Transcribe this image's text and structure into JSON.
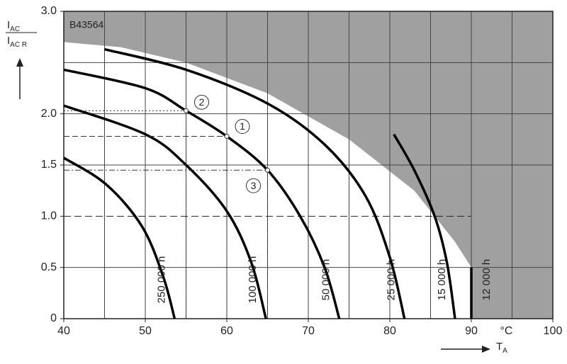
{
  "chart_data": {
    "type": "line",
    "id_label": "B43564",
    "ylabel_top": {
      "main": "I",
      "sub": "AC"
    },
    "ylabel_bottom": {
      "main": "I",
      "sub": "AC R"
    },
    "xlabel": {
      "main": "T",
      "sub": "A"
    },
    "xunit": "°C",
    "xlim": [
      40,
      100
    ],
    "ylim": [
      0,
      3
    ],
    "xticks": [
      40,
      50,
      60,
      70,
      80,
      90,
      100
    ],
    "yticks": [
      0,
      0.5,
      {
        "value": 1,
        "label": "1.0"
      },
      1.5,
      {
        "value": 2,
        "label": "2.0"
      },
      {
        "value": 3,
        "label": "3.0"
      }
    ],
    "xgrid": [
      45,
      50,
      55,
      60,
      65,
      70,
      75,
      80,
      85,
      90,
      95
    ],
    "ygrid": [
      0.5,
      1.5,
      2,
      2.5
    ],
    "color": "#000000",
    "limit_color": "#a0a0a0",
    "series": [
      {
        "name": "250 000 h",
        "x": [
          40,
          45.2,
          49.6,
          52.2,
          53.6
        ],
        "values": [
          1.57,
          1.31,
          0.9,
          0.41,
          0
        ]
      },
      {
        "name": "100 000 h",
        "x": [
          40,
          50,
          55,
          60,
          63,
          64.8
        ],
        "values": [
          2.08,
          1.8,
          1.5,
          1.05,
          0.55,
          0
        ]
      },
      {
        "name": "50 000 h",
        "x": [
          40,
          50,
          55,
          60,
          65,
          69,
          72,
          73.8
        ],
        "values": [
          2.43,
          2.25,
          2.03,
          1.78,
          1.45,
          1.0,
          0.5,
          0
        ]
      },
      {
        "name": "25 000 h",
        "x": [
          45,
          55,
          65,
          72,
          77,
          80,
          81.8
        ],
        "values": [
          2.63,
          2.43,
          2.1,
          1.7,
          1.2,
          0.6,
          0
        ]
      },
      {
        "name": "15 000 h",
        "x": [
          80.5,
          83,
          85.5,
          87,
          88
        ],
        "values": [
          1.8,
          1.45,
          1.0,
          0.55,
          0
        ]
      },
      {
        "name": "12 000 h",
        "limit": true,
        "x": [
          40,
          47,
          55,
          65,
          75,
          83,
          88,
          90,
          90
        ],
        "values": [
          2.7,
          2.65,
          2.5,
          2.2,
          1.75,
          1.25,
          0.75,
          0.5,
          0
        ]
      }
    ],
    "reference_lines": [
      {
        "y": 1,
        "x": 90
      }
    ],
    "markers": [
      {
        "label": "2",
        "x": 55,
        "y": 2.03
      },
      {
        "label": "1",
        "x": 60,
        "y": 1.78
      },
      {
        "label": "3",
        "x": 65,
        "y": 1.45
      }
    ]
  }
}
